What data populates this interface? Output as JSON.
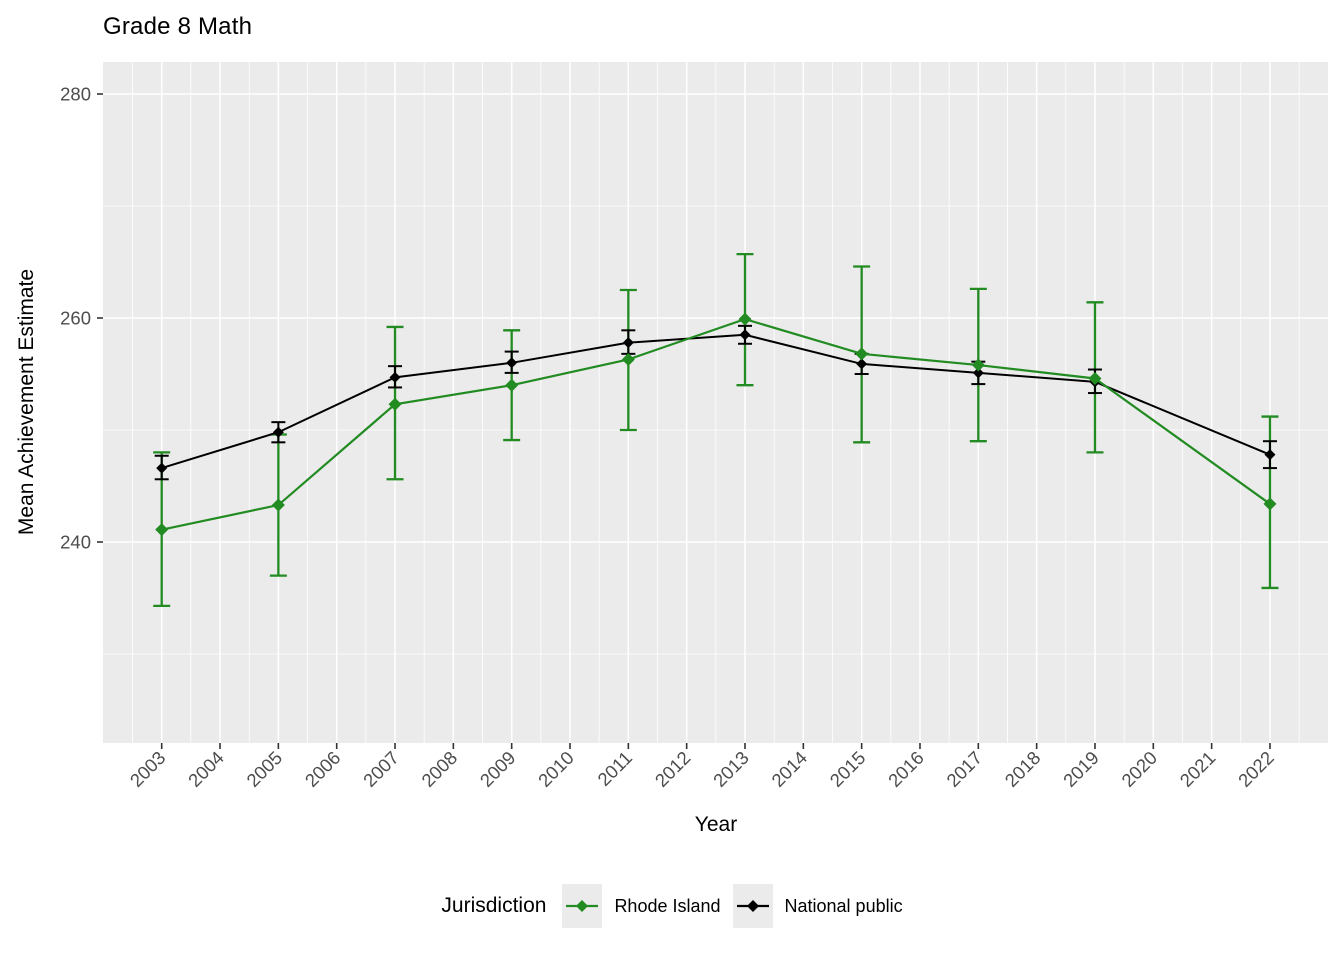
{
  "title": "Grade 8 Math",
  "axes": {
    "x_label": "Year",
    "y_label": "Mean Achievement Estimate"
  },
  "legend": {
    "title": "Jurisdiction",
    "items": [
      {
        "label": "Rhode Island",
        "color": "#228B22"
      },
      {
        "label": "National public",
        "color": "#000000"
      }
    ]
  },
  "colors": {
    "panel_bg": "#EBEBEB",
    "grid": "#FFFFFF",
    "tick_text": "#4D4D4D",
    "tick_mark": "#333333",
    "legend_key_bg": "#EBEBEB"
  },
  "chart_data": {
    "type": "line",
    "title": "Grade 8 Math",
    "xlabel": "Year",
    "ylabel": "Mean Achievement Estimate",
    "x_tick_labels": [
      "2003",
      "2004",
      "2005",
      "2006",
      "2007",
      "2008",
      "2009",
      "2010",
      "2011",
      "2012",
      "2013",
      "2014",
      "2015",
      "2016",
      "2017",
      "2018",
      "2019",
      "2020",
      "2021",
      "2022"
    ],
    "x_tick_values": [
      2003,
      2004,
      2005,
      2006,
      2007,
      2008,
      2009,
      2010,
      2011,
      2012,
      2013,
      2014,
      2015,
      2016,
      2017,
      2018,
      2019,
      2020,
      2021,
      2022
    ],
    "y_tick_labels": [
      "240",
      "260",
      "280"
    ],
    "y_tick_values": [
      240,
      260,
      280
    ],
    "y_minor_values": [
      230,
      250,
      270
    ],
    "xlim": [
      2002.0,
      2023.0
    ],
    "ylim": [
      222,
      283
    ],
    "grid": true,
    "legend_position": "bottom",
    "error_bars": true,
    "point_shape": "diamond",
    "series": [
      {
        "name": "Rhode Island",
        "color": "#228B22",
        "x": [
          2003,
          2005,
          2007,
          2009,
          2011,
          2013,
          2015,
          2017,
          2019,
          2022
        ],
        "y": [
          241.1,
          243.3,
          252.3,
          254.0,
          256.3,
          259.9,
          256.8,
          255.8,
          254.6,
          243.4
        ],
        "ci_low": [
          234.3,
          237.0,
          245.6,
          249.1,
          250.0,
          254.0,
          248.9,
          249.0,
          248.0,
          235.9
        ],
        "ci_high": [
          248.0,
          249.6,
          259.2,
          258.9,
          262.5,
          265.7,
          264.6,
          262.6,
          261.4,
          251.2
        ]
      },
      {
        "name": "National public",
        "color": "#000000",
        "x": [
          2003,
          2005,
          2007,
          2009,
          2011,
          2013,
          2015,
          2017,
          2019,
          2022
        ],
        "y": [
          246.6,
          249.8,
          254.7,
          256.0,
          257.8,
          258.5,
          255.9,
          255.1,
          254.3,
          247.8
        ],
        "ci_low": [
          245.6,
          248.9,
          253.8,
          255.1,
          256.8,
          257.7,
          255.0,
          254.1,
          253.3,
          246.6
        ],
        "ci_high": [
          247.7,
          250.7,
          255.7,
          257.0,
          258.9,
          259.3,
          256.8,
          256.1,
          255.4,
          249.0
        ]
      }
    ]
  }
}
